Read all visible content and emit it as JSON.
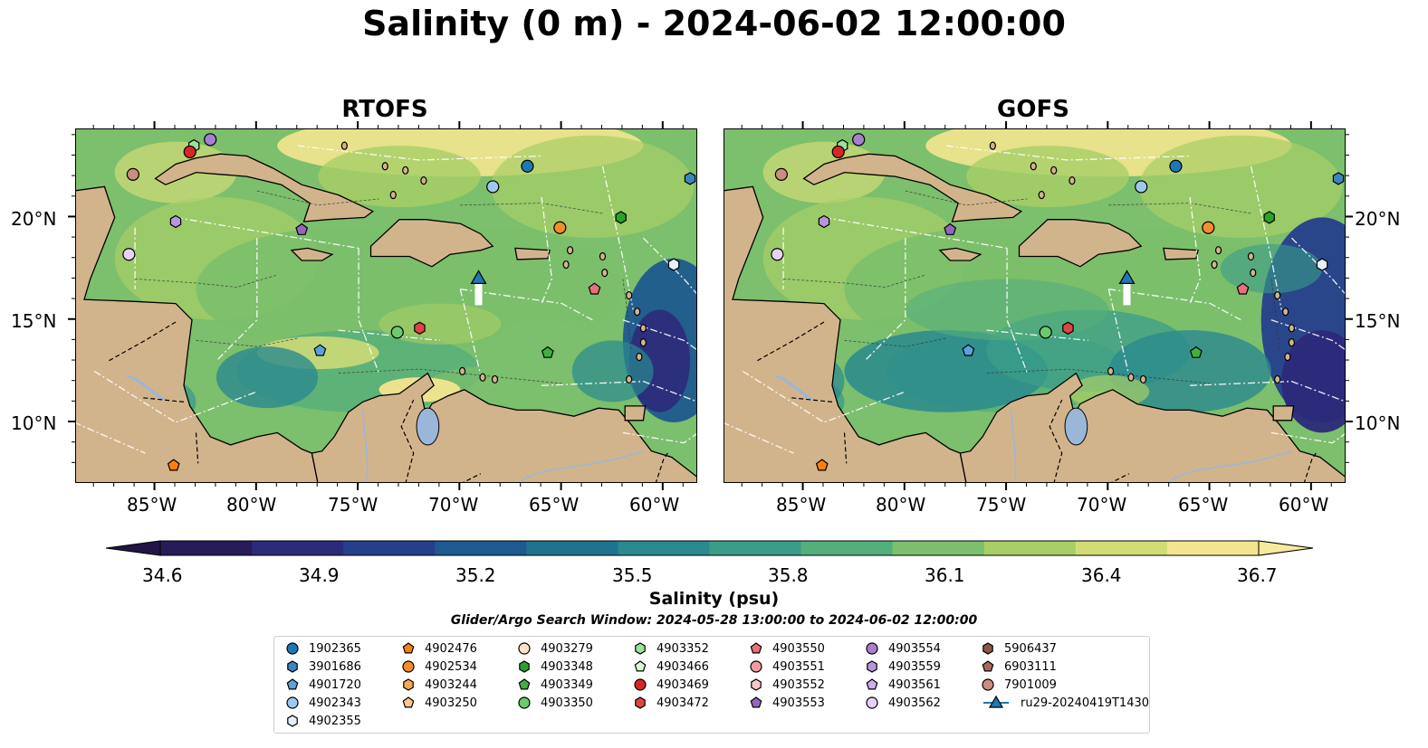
{
  "title": "Salinity (0 m) - 2024-06-02 12:00:00",
  "panels": [
    {
      "title": "RTOFS"
    },
    {
      "title": "GOFS"
    }
  ],
  "axes": {
    "lon_ticks": [
      "85°W",
      "80°W",
      "75°W",
      "70°W",
      "65°W",
      "60°W"
    ],
    "lat_ticks": [
      "20°N",
      "15°N",
      "10°N"
    ]
  },
  "colorbar": {
    "label": "Salinity (psu)",
    "ticks": [
      "34.6",
      "34.9",
      "35.2",
      "35.5",
      "35.8",
      "36.1",
      "36.4",
      "36.7"
    ],
    "vmin": 34.6,
    "vmax": 36.7,
    "colors": [
      "#271b58",
      "#2c2a7a",
      "#263f8c",
      "#1e5a8f",
      "#1f7390",
      "#2a8a8e",
      "#3b9d88",
      "#55af7b",
      "#7cbf6c",
      "#a8cf66",
      "#d2dc76",
      "#f3e58f"
    ]
  },
  "search_window": "Glider/Argo Search Window: 2024-05-28 13:00:00 to 2024-06-02 12:00:00",
  "colors": {
    "land": "#d2b48c",
    "lake": "#9ab7d8"
  },
  "legend": [
    {
      "label": "1902365",
      "color": "#1f77b4",
      "marker": "circle"
    },
    {
      "label": "3901686",
      "color": "#3a86c0",
      "marker": "hexagon"
    },
    {
      "label": "4901720",
      "color": "#5aa2d8",
      "marker": "pentagon"
    },
    {
      "label": "4902343",
      "color": "#9ec9ee",
      "marker": "circle"
    },
    {
      "label": "4902355",
      "color": "#e3f0fb",
      "marker": "hexagon"
    },
    {
      "label": "4902476",
      "color": "#ff7f0e",
      "marker": "pentagon"
    },
    {
      "label": "4902534",
      "color": "#f48d2c",
      "marker": "circle"
    },
    {
      "label": "4903244",
      "color": "#f9a94f",
      "marker": "hexagon"
    },
    {
      "label": "4903250",
      "color": "#fcc890",
      "marker": "pentagon"
    },
    {
      "label": "4903279",
      "color": "#fde2c8",
      "marker": "circle"
    },
    {
      "label": "4903348",
      "color": "#2ca02c",
      "marker": "hexagon"
    },
    {
      "label": "4903349",
      "color": "#40b040",
      "marker": "pentagon"
    },
    {
      "label": "4903350",
      "color": "#6cc96c",
      "marker": "circle"
    },
    {
      "label": "4903352",
      "color": "#9be39b",
      "marker": "hexagon"
    },
    {
      "label": "4903466",
      "color": "#d8f7d2",
      "marker": "pentagon"
    },
    {
      "label": "4903469",
      "color": "#d62728",
      "marker": "circle"
    },
    {
      "label": "4903472",
      "color": "#e04545",
      "marker": "hexagon"
    },
    {
      "label": "4903550",
      "color": "#e8707a",
      "marker": "pentagon"
    },
    {
      "label": "4903551",
      "color": "#f29b9e",
      "marker": "circle"
    },
    {
      "label": "4903552",
      "color": "#f8c8c8",
      "marker": "hexagon"
    },
    {
      "label": "4903553",
      "color": "#9467bd",
      "marker": "pentagon"
    },
    {
      "label": "4903554",
      "color": "#a680cc",
      "marker": "circle"
    },
    {
      "label": "4903559",
      "color": "#b795dc",
      "marker": "hexagon"
    },
    {
      "label": "4903561",
      "color": "#cdb0ea",
      "marker": "pentagon"
    },
    {
      "label": "4903562",
      "color": "#e6d2f6",
      "marker": "circle"
    },
    {
      "label": "5906437",
      "color": "#8c564b",
      "marker": "hexagon"
    },
    {
      "label": "6903111",
      "color": "#a66a5a",
      "marker": "pentagon"
    },
    {
      "label": "7901009",
      "color": "#c98f7c",
      "marker": "circle"
    },
    {
      "label": "ru29-20240419T1430",
      "color": "#1f77b4",
      "marker": "triangle-line"
    }
  ],
  "markers_on_map": [
    {
      "id": "1902365",
      "lon": -66.7,
      "lat": 22.5
    },
    {
      "id": "3901686",
      "lon": -58.7,
      "lat": 21.9
    },
    {
      "id": "4901720",
      "lon": -76.9,
      "lat": 13.5
    },
    {
      "id": "4902343",
      "lon": -68.4,
      "lat": 21.5
    },
    {
      "id": "4902355",
      "lon": -59.5,
      "lat": 17.7
    },
    {
      "id": "4902476",
      "lon": -84.1,
      "lat": 7.9
    },
    {
      "id": "4902534",
      "lon": -65.1,
      "lat": 19.5
    },
    {
      "id": "4903348",
      "lon": -62.1,
      "lat": 20.0
    },
    {
      "id": "4903349",
      "lon": -65.7,
      "lat": 13.4
    },
    {
      "id": "4903350",
      "lon": -73.1,
      "lat": 14.4
    },
    {
      "id": "4903352",
      "lon": -83.1,
      "lat": 23.5
    },
    {
      "id": "4903469",
      "lon": -83.3,
      "lat": 23.2
    },
    {
      "id": "4903472",
      "lon": -72.0,
      "lat": 14.6
    },
    {
      "id": "4903550",
      "lon": -63.4,
      "lat": 16.5
    },
    {
      "id": "4903553",
      "lon": -77.8,
      "lat": 19.4
    },
    {
      "id": "4903554",
      "lon": -82.3,
      "lat": 23.8
    },
    {
      "id": "4903559",
      "lon": -84.0,
      "lat": 19.8
    },
    {
      "id": "4903562",
      "lon": -86.3,
      "lat": 18.2
    },
    {
      "id": "7901009",
      "lon": -86.1,
      "lat": 22.1
    }
  ],
  "glider": {
    "id": "ru29-20240419T1430",
    "lon": -69.1,
    "lat": 17.0
  }
}
